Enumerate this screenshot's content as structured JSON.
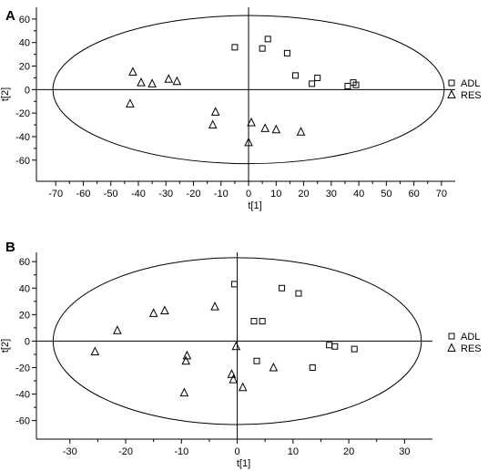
{
  "chart_data": [
    {
      "panel": "A",
      "type": "scatter",
      "xlabel": "t[1]",
      "ylabel": "t[2]",
      "xlim": [
        -77,
        75
      ],
      "ylim": [
        -78,
        70
      ],
      "xticks": [
        -70,
        -60,
        -50,
        -40,
        -30,
        -20,
        -10,
        0,
        10,
        20,
        30,
        40,
        50,
        60,
        70
      ],
      "yticks": [
        -60,
        -40,
        -20,
        0,
        20,
        40,
        60
      ],
      "ellipse": {
        "cx": 0,
        "cy": 0,
        "rx": 71,
        "ry": 63
      },
      "grid": false,
      "legend_position": "right",
      "series": [
        {
          "name": "ADL",
          "marker": "square",
          "points": [
            [
              -5,
              36
            ],
            [
              5,
              35
            ],
            [
              7,
              43
            ],
            [
              14,
              31
            ],
            [
              17,
              12
            ],
            [
              23,
              5
            ],
            [
              25,
              10
            ],
            [
              36,
              3
            ],
            [
              38,
              6
            ],
            [
              39,
              4
            ]
          ]
        },
        {
          "name": "RES",
          "marker": "triangle",
          "points": [
            [
              -42,
              15
            ],
            [
              -39,
              6
            ],
            [
              -35,
              5
            ],
            [
              -29,
              9
            ],
            [
              -26,
              7
            ],
            [
              -43,
              -12
            ],
            [
              -12,
              -19
            ],
            [
              -13,
              -30
            ],
            [
              1,
              -28
            ],
            [
              0,
              -45
            ],
            [
              6,
              -33
            ],
            [
              10,
              -34
            ],
            [
              19,
              -36
            ]
          ]
        }
      ]
    },
    {
      "panel": "B",
      "type": "scatter",
      "xlabel": "t[1]",
      "ylabel": "t[2]",
      "xlim": [
        -36,
        35
      ],
      "ylim": [
        -74,
        67
      ],
      "xticks": [
        -30,
        -20,
        -10,
        0,
        10,
        20,
        30
      ],
      "yticks": [
        -60,
        -40,
        -20,
        0,
        20,
        40,
        60
      ],
      "ellipse": {
        "cx": 0,
        "cy": 0,
        "rx": 33,
        "ry": 63
      },
      "grid": false,
      "legend_position": "right",
      "series": [
        {
          "name": "ADL",
          "marker": "square",
          "points": [
            [
              -0.5,
              43
            ],
            [
              3,
              15
            ],
            [
              4.5,
              15
            ],
            [
              8,
              40
            ],
            [
              11,
              36
            ],
            [
              3.5,
              -15
            ],
            [
              13.5,
              -20
            ],
            [
              16.5,
              -3
            ],
            [
              17.5,
              -4
            ],
            [
              21,
              -6
            ]
          ]
        },
        {
          "name": "RES",
          "marker": "triangle",
          "points": [
            [
              -25.5,
              -8
            ],
            [
              -21.5,
              8
            ],
            [
              -15,
              21
            ],
            [
              -13,
              23
            ],
            [
              -4,
              26
            ],
            [
              -9,
              -11
            ],
            [
              -9.2,
              -15
            ],
            [
              -9.5,
              -39
            ],
            [
              -1,
              -25
            ],
            [
              -0.7,
              -29
            ],
            [
              -0.2,
              -4
            ],
            [
              1,
              -35
            ],
            [
              6.5,
              -20
            ]
          ]
        }
      ]
    }
  ]
}
